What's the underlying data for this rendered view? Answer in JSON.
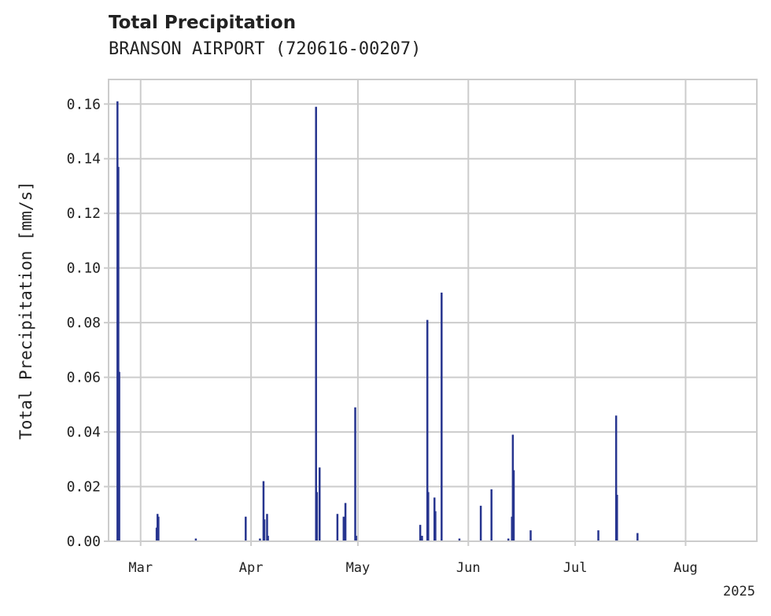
{
  "colors": {
    "bar": "#27358f",
    "grid": "#cccccc",
    "frame": "#cccccc",
    "text": "#222222"
  },
  "chart_data": {
    "type": "bar",
    "title": "Total Precipitation",
    "subtitle": "BRANSON AIRPORT (720616-00207)",
    "ylabel": "Total Precipitation [mm/s]",
    "xlabel": "",
    "ylim": [
      0,
      0.169
    ],
    "xlim": [
      "2025-02-20",
      "2025-08-21"
    ],
    "year_label": "2025",
    "grid": true,
    "yticks": [
      {
        "value": 0.0,
        "label": "0.00"
      },
      {
        "value": 0.02,
        "label": "0.02"
      },
      {
        "value": 0.04,
        "label": "0.04"
      },
      {
        "value": 0.06,
        "label": "0.06"
      },
      {
        "value": 0.08,
        "label": "0.08"
      },
      {
        "value": 0.1,
        "label": "0.10"
      },
      {
        "value": 0.12,
        "label": "0.12"
      },
      {
        "value": 0.14,
        "label": "0.14"
      },
      {
        "value": 0.16,
        "label": "0.16"
      }
    ],
    "xticks": [
      {
        "date": "2025-03-01",
        "label": "Mar"
      },
      {
        "date": "2025-04-01",
        "label": "Apr"
      },
      {
        "date": "2025-05-01",
        "label": "May"
      },
      {
        "date": "2025-06-01",
        "label": "Jun"
      },
      {
        "date": "2025-07-01",
        "label": "Jul"
      },
      {
        "date": "2025-08-01",
        "label": "Aug"
      }
    ],
    "series": [
      {
        "name": "Total Precipitation",
        "points": [
          {
            "date": "2025-02-22T12:00",
            "value": 0.161
          },
          {
            "date": "2025-02-22T18:00",
            "value": 0.137
          },
          {
            "date": "2025-02-23T00:00",
            "value": 0.062
          },
          {
            "date": "2025-03-05T12:00",
            "value": 0.005
          },
          {
            "date": "2025-03-05T18:00",
            "value": 0.01
          },
          {
            "date": "2025-03-06T00:00",
            "value": 0.009
          },
          {
            "date": "2025-03-16T12:00",
            "value": 0.001
          },
          {
            "date": "2025-03-30T12:00",
            "value": 0.009
          },
          {
            "date": "2025-04-03T12:00",
            "value": 0.001
          },
          {
            "date": "2025-04-04T12:00",
            "value": 0.022
          },
          {
            "date": "2025-04-04T18:00",
            "value": 0.008
          },
          {
            "date": "2025-04-05T12:00",
            "value": 0.01
          },
          {
            "date": "2025-04-05T18:00",
            "value": 0.002
          },
          {
            "date": "2025-04-19T06:00",
            "value": 0.159
          },
          {
            "date": "2025-04-19T12:00",
            "value": 0.018
          },
          {
            "date": "2025-04-20T06:00",
            "value": 0.027
          },
          {
            "date": "2025-04-25T06:00",
            "value": 0.01
          },
          {
            "date": "2025-04-27T00:00",
            "value": 0.009
          },
          {
            "date": "2025-04-27T12:00",
            "value": 0.014
          },
          {
            "date": "2025-04-30T06:00",
            "value": 0.049
          },
          {
            "date": "2025-04-30T12:00",
            "value": 0.002
          },
          {
            "date": "2025-05-18T12:00",
            "value": 0.006
          },
          {
            "date": "2025-05-19T00:00",
            "value": 0.002
          },
          {
            "date": "2025-05-20T12:00",
            "value": 0.081
          },
          {
            "date": "2025-05-20T18:00",
            "value": 0.018
          },
          {
            "date": "2025-05-22T12:00",
            "value": 0.016
          },
          {
            "date": "2025-05-22T18:00",
            "value": 0.011
          },
          {
            "date": "2025-05-24T12:00",
            "value": 0.091
          },
          {
            "date": "2025-05-29T12:00",
            "value": 0.001
          },
          {
            "date": "2025-06-04T12:00",
            "value": 0.013
          },
          {
            "date": "2025-06-07T12:00",
            "value": 0.019
          },
          {
            "date": "2025-06-12T06:00",
            "value": 0.001
          },
          {
            "date": "2025-06-13T06:00",
            "value": 0.009
          },
          {
            "date": "2025-06-13T12:00",
            "value": 0.039
          },
          {
            "date": "2025-06-13T18:00",
            "value": 0.026
          },
          {
            "date": "2025-06-18T12:00",
            "value": 0.004
          },
          {
            "date": "2025-07-07T12:00",
            "value": 0.004
          },
          {
            "date": "2025-07-12T12:00",
            "value": 0.046
          },
          {
            "date": "2025-07-12T18:00",
            "value": 0.017
          },
          {
            "date": "2025-07-18T12:00",
            "value": 0.003
          }
        ]
      }
    ]
  }
}
